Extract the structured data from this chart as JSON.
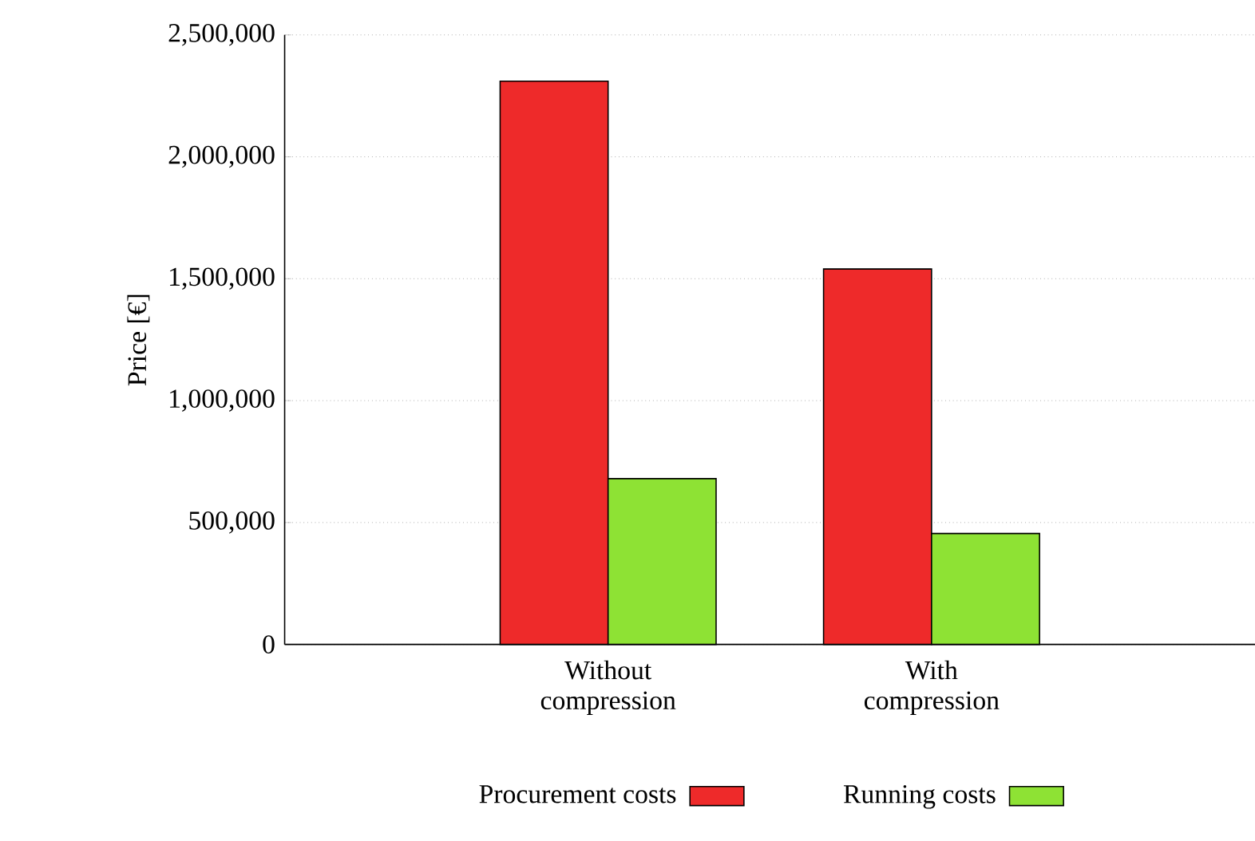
{
  "chart_data": {
    "type": "bar",
    "categories": [
      "Without compression",
      "With compression"
    ],
    "series": [
      {
        "name": "Procurement costs",
        "color": "#ee2a2a",
        "values": [
          2310000,
          1540000
        ]
      },
      {
        "name": "Running costs",
        "color": "#8ee234",
        "values": [
          680000,
          455000
        ]
      }
    ],
    "ylabel": "Price [€]",
    "ylim": [
      0,
      2500000
    ],
    "yticks": [
      0,
      {
        "value": 500000,
        "label": "500,000"
      },
      {
        "value": 1000000,
        "label": "1,000,000"
      },
      {
        "value": 1500000,
        "label": "1,500,000"
      },
      {
        "value": 2000000,
        "label": "2,000,000"
      },
      {
        "value": 2500000,
        "label": "2,500,000"
      }
    ],
    "grid": "y",
    "legend": "bottom"
  }
}
